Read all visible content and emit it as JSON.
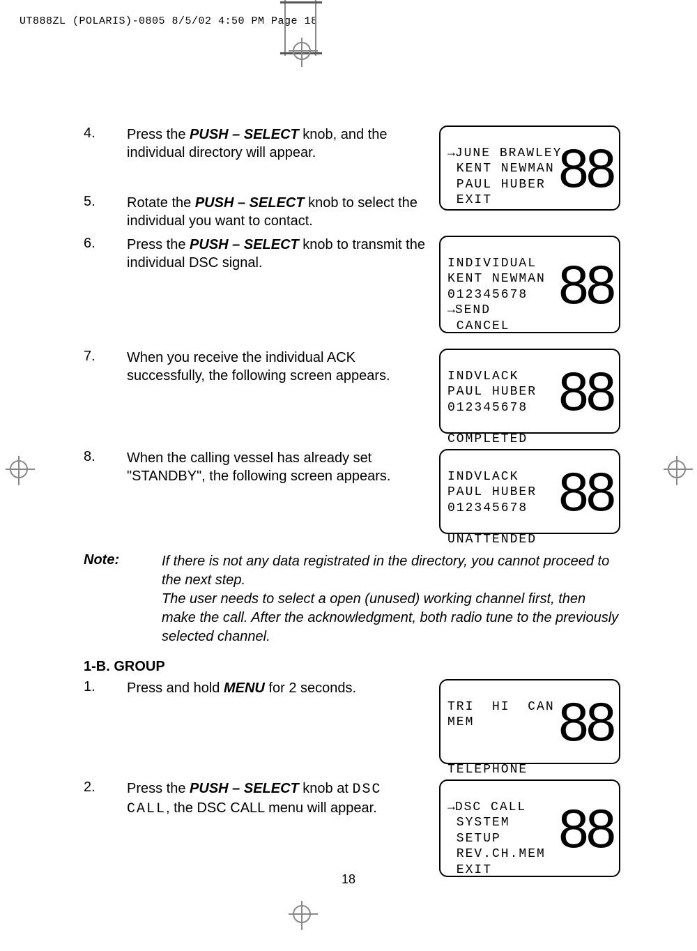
{
  "header": "UT888ZL (POLARIS)-0805  8/5/02  4:50 PM  Page 18",
  "steps_a": [
    {
      "n": "4.",
      "text_parts": [
        "Press the ",
        "PUSH – SELECT",
        " knob, and the individual directory will appear."
      ]
    },
    {
      "n": "5.",
      "text_parts": [
        "Rotate the ",
        "PUSH – SELECT",
        " knob to select the individual you want to contact."
      ]
    },
    {
      "n": "6.",
      "text_parts": [
        "Press the ",
        "PUSH – SELECT",
        " knob to transmit the individual DSC signal."
      ]
    },
    {
      "n": "7.",
      "text_parts": [
        "When you receive the individual ACK successfully, the following screen appears."
      ]
    },
    {
      "n": "8.",
      "text_parts": [
        "When the calling vessel has already set \"STANDBY\", the following screen appears."
      ]
    }
  ],
  "lcd1": {
    "l1": "JUNE BRAWLEY",
    "l2": " KENT NEWMAN",
    "l3": " PAUL HUBER",
    "l4": " EXIT",
    "big": "88"
  },
  "lcd2": {
    "l1": "INDIVIDUAL",
    "l2": "KENT NEWMAN",
    "l3": "012345678",
    "l4": "SEND",
    "l5": " CANCEL",
    "big": "88"
  },
  "lcd3": {
    "l1": "INDVLACK",
    "l2": "PAUL HUBER",
    "l3": "012345678",
    "l5": "COMPLETED",
    "big": "88"
  },
  "lcd4": {
    "l1": "INDVLACK",
    "l2": "PAUL HUBER",
    "l3": "012345678",
    "l5": "UNATTENDED",
    "big": "88"
  },
  "note": {
    "label": "Note:",
    "body": "If there is not any data registrated in the directory, you cannot proceed to the next step.\nThe user needs to select a open (unused) working channel first, then make the call.  After the acknowledgment, both radio tune to the previously selected channel."
  },
  "section_b": "1-B. GROUP",
  "steps_b": [
    {
      "n": "1.",
      "pre": "Press and hold ",
      "bold": "MENU",
      "post": " for 2 seconds."
    },
    {
      "n": "2.",
      "pre": "Press the ",
      "bold": "PUSH – SELECT",
      "post": " knob  at ",
      "mono": "DSC CALL",
      "post2": ", the DSC CALL menu will appear."
    }
  ],
  "lcd5": {
    "l1": "TRI  HI  CAN",
    "l2": "MEM",
    "l5": "TELEPHONE",
    "big": "88"
  },
  "lcd6": {
    "l1": "DSC CALL",
    "l2": " SYSTEM",
    "l3": " SETUP",
    "l4": " REV.CH.MEM",
    "l5": " EXIT",
    "big": "88"
  },
  "page": "18"
}
